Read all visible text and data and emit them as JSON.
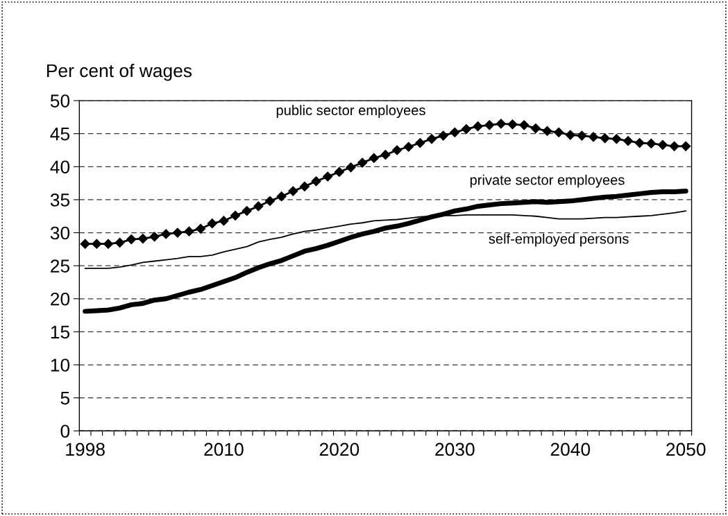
{
  "chart_data": {
    "type": "line",
    "ylabel": "Per cent of wages",
    "categories": [
      "1998",
      null,
      null,
      null,
      null,
      null,
      null,
      null,
      null,
      null,
      null,
      null,
      "2010",
      null,
      null,
      null,
      null,
      null,
      null,
      null,
      null,
      null,
      "2020",
      null,
      null,
      null,
      null,
      null,
      null,
      null,
      null,
      null,
      "2030",
      null,
      null,
      null,
      null,
      null,
      null,
      null,
      null,
      null,
      "2040",
      null,
      null,
      null,
      null,
      null,
      null,
      null,
      null,
      null,
      "2050"
    ],
    "series": [
      {
        "name": "public sector employees",
        "color": "#000000",
        "marker": "diamond",
        "values": [
          28.3,
          28.3,
          28.3,
          28.5,
          29.0,
          29.1,
          29.4,
          29.8,
          30.0,
          30.2,
          30.6,
          31.4,
          31.8,
          32.6,
          33.3,
          34.0,
          34.8,
          35.5,
          36.3,
          37.0,
          37.8,
          38.5,
          39.2,
          39.9,
          40.6,
          41.3,
          41.8,
          42.5,
          43.0,
          43.6,
          44.2,
          44.7,
          45.2,
          45.7,
          46.1,
          46.3,
          46.5,
          46.4,
          46.3,
          45.8,
          45.4,
          45.2,
          44.8,
          44.7,
          44.5,
          44.3,
          44.2,
          43.9,
          43.6,
          43.5,
          43.3,
          43.1,
          43.1
        ]
      },
      {
        "name": "private sector employees",
        "color": "#000000",
        "values": [
          18.1,
          18.2,
          18.3,
          18.6,
          19.1,
          19.3,
          19.8,
          20.0,
          20.5,
          21.0,
          21.4,
          22.0,
          22.6,
          23.2,
          24.0,
          24.7,
          25.3,
          25.8,
          26.5,
          27.2,
          27.6,
          28.1,
          28.7,
          29.3,
          29.8,
          30.2,
          30.7,
          31.0,
          31.4,
          31.9,
          32.4,
          32.8,
          33.3,
          33.6,
          34.0,
          34.2,
          34.4,
          34.5,
          34.6,
          34.7,
          34.6,
          34.7,
          34.8,
          35.0,
          35.2,
          35.4,
          35.5,
          35.7,
          35.9,
          36.1,
          36.2,
          36.2,
          36.3
        ]
      },
      {
        "name": "self-employed persons",
        "color": "#000000",
        "values": [
          24.6,
          24.6,
          24.6,
          24.8,
          25.1,
          25.5,
          25.7,
          25.9,
          26.1,
          26.4,
          26.4,
          26.6,
          27.1,
          27.5,
          27.9,
          28.6,
          29.0,
          29.3,
          29.8,
          30.2,
          30.4,
          30.7,
          31.0,
          31.3,
          31.5,
          31.8,
          31.9,
          32.0,
          32.2,
          32.4,
          32.5,
          32.6,
          32.6,
          32.7,
          32.7,
          32.7,
          32.7,
          32.7,
          32.6,
          32.5,
          32.3,
          32.1,
          32.1,
          32.1,
          32.2,
          32.3,
          32.3,
          32.4,
          32.5,
          32.6,
          32.8,
          33.0,
          33.3
        ]
      }
    ],
    "ylim": [
      0,
      50
    ],
    "yticks": [
      0,
      5,
      10,
      15,
      20,
      25,
      30,
      35,
      40,
      45,
      50
    ],
    "grid": "y",
    "line_style": "solid"
  }
}
